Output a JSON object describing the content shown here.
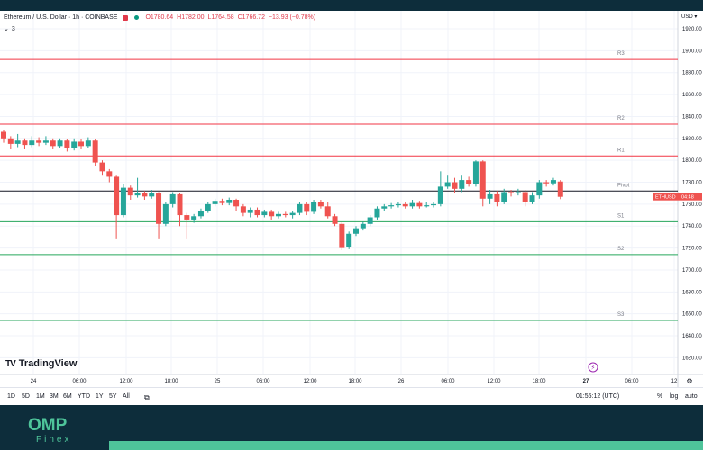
{
  "header": {
    "symbol": "Ethereum / U.S. Dollar · 1h · COINBASE",
    "open": "O1780.64",
    "high": "H1782.00",
    "low": "L1764.58",
    "close": "C1766.72",
    "change": "−13.93 (−0.78%)",
    "indicator_count": "3"
  },
  "currency": "USD",
  "price_axis": [
    "1920.00",
    "1900.00",
    "1880.00",
    "1860.00",
    "1840.00",
    "1820.00",
    "1800.00",
    "1780.00",
    "1760.00",
    "1740.00",
    "1720.00",
    "1700.00",
    "1680.00",
    "1660.00",
    "1640.00",
    "1620.00"
  ],
  "time_axis": [
    "24",
    "06:00",
    "12:00",
    "18:00",
    "25",
    "06:00",
    "12:00",
    "18:00",
    "26",
    "06:00",
    "12:00",
    "18:00",
    "27",
    "06:00",
    "12"
  ],
  "symbol_tag": "ETHUSD",
  "countdown": "04:48",
  "pivot_levels": [
    {
      "label": "R3",
      "price": 1892,
      "color": "#f23645"
    },
    {
      "label": "R2",
      "price": 1833,
      "color": "#f23645"
    },
    {
      "label": "R1",
      "price": 1804,
      "color": "#f23645"
    },
    {
      "label": "Pivot",
      "price": 1772,
      "color": "#131722"
    },
    {
      "label": "S1",
      "price": 1744,
      "color": "#26a65b"
    },
    {
      "label": "S2",
      "price": 1714,
      "color": "#26a65b"
    },
    {
      "label": "S3",
      "price": 1654,
      "color": "#26a65b"
    }
  ],
  "chart_data": {
    "type": "candlestick",
    "candles": [
      {
        "o": 1826,
        "c": 1820,
        "h": 1828,
        "l": 1816
      },
      {
        "o": 1820,
        "c": 1815,
        "h": 1822,
        "l": 1810
      },
      {
        "o": 1815,
        "c": 1818,
        "h": 1824,
        "l": 1812
      },
      {
        "o": 1818,
        "c": 1814,
        "h": 1820,
        "l": 1810
      },
      {
        "o": 1814,
        "c": 1818,
        "h": 1822,
        "l": 1812
      },
      {
        "o": 1818,
        "c": 1816,
        "h": 1821,
        "l": 1813
      },
      {
        "o": 1816,
        "c": 1818,
        "h": 1822,
        "l": 1814
      },
      {
        "o": 1818,
        "c": 1813,
        "h": 1820,
        "l": 1810
      },
      {
        "o": 1813,
        "c": 1818,
        "h": 1820,
        "l": 1811
      },
      {
        "o": 1818,
        "c": 1811,
        "h": 1819,
        "l": 1808
      },
      {
        "o": 1811,
        "c": 1817,
        "h": 1820,
        "l": 1809
      },
      {
        "o": 1817,
        "c": 1813,
        "h": 1819,
        "l": 1810
      },
      {
        "o": 1813,
        "c": 1818,
        "h": 1821,
        "l": 1811
      },
      {
        "o": 1818,
        "c": 1798,
        "h": 1819,
        "l": 1795
      },
      {
        "o": 1798,
        "c": 1790,
        "h": 1800,
        "l": 1786
      },
      {
        "o": 1790,
        "c": 1785,
        "h": 1792,
        "l": 1780
      },
      {
        "o": 1785,
        "c": 1750,
        "h": 1786,
        "l": 1728
      },
      {
        "o": 1750,
        "c": 1775,
        "h": 1778,
        "l": 1748
      },
      {
        "o": 1775,
        "c": 1768,
        "h": 1777,
        "l": 1764
      },
      {
        "o": 1768,
        "c": 1770,
        "h": 1784,
        "l": 1766
      },
      {
        "o": 1770,
        "c": 1767,
        "h": 1772,
        "l": 1764
      },
      {
        "o": 1767,
        "c": 1770,
        "h": 1773,
        "l": 1765
      },
      {
        "o": 1770,
        "c": 1742,
        "h": 1771,
        "l": 1728
      },
      {
        "o": 1742,
        "c": 1760,
        "h": 1762,
        "l": 1740
      },
      {
        "o": 1760,
        "c": 1769,
        "h": 1771,
        "l": 1757
      },
      {
        "o": 1769,
        "c": 1750,
        "h": 1770,
        "l": 1740
      },
      {
        "o": 1750,
        "c": 1746,
        "h": 1752,
        "l": 1728
      },
      {
        "o": 1746,
        "c": 1749,
        "h": 1751,
        "l": 1743
      },
      {
        "o": 1749,
        "c": 1754,
        "h": 1756,
        "l": 1747
      },
      {
        "o": 1754,
        "c": 1760,
        "h": 1762,
        "l": 1752
      },
      {
        "o": 1760,
        "c": 1763,
        "h": 1765,
        "l": 1758
      },
      {
        "o": 1763,
        "c": 1761,
        "h": 1765,
        "l": 1759
      },
      {
        "o": 1761,
        "c": 1764,
        "h": 1766,
        "l": 1759
      },
      {
        "o": 1764,
        "c": 1758,
        "h": 1765,
        "l": 1754
      },
      {
        "o": 1758,
        "c": 1752,
        "h": 1760,
        "l": 1749
      },
      {
        "o": 1752,
        "c": 1755,
        "h": 1757,
        "l": 1748
      },
      {
        "o": 1755,
        "c": 1750,
        "h": 1757,
        "l": 1748
      },
      {
        "o": 1750,
        "c": 1753,
        "h": 1755,
        "l": 1748
      },
      {
        "o": 1753,
        "c": 1749,
        "h": 1755,
        "l": 1746
      },
      {
        "o": 1749,
        "c": 1751,
        "h": 1753,
        "l": 1747
      },
      {
        "o": 1751,
        "c": 1750,
        "h": 1753,
        "l": 1748
      },
      {
        "o": 1750,
        "c": 1752,
        "h": 1754,
        "l": 1747
      },
      {
        "o": 1752,
        "c": 1760,
        "h": 1762,
        "l": 1750
      },
      {
        "o": 1760,
        "c": 1753,
        "h": 1762,
        "l": 1750
      },
      {
        "o": 1753,
        "c": 1762,
        "h": 1764,
        "l": 1751
      },
      {
        "o": 1762,
        "c": 1758,
        "h": 1764,
        "l": 1756
      },
      {
        "o": 1758,
        "c": 1749,
        "h": 1762,
        "l": 1747
      },
      {
        "o": 1749,
        "c": 1742,
        "h": 1751,
        "l": 1740
      },
      {
        "o": 1742,
        "c": 1720,
        "h": 1744,
        "l": 1718
      },
      {
        "o": 1721,
        "c": 1733,
        "h": 1735,
        "l": 1719
      },
      {
        "o": 1733,
        "c": 1738,
        "h": 1740,
        "l": 1731
      },
      {
        "o": 1738,
        "c": 1742,
        "h": 1744,
        "l": 1736
      },
      {
        "o": 1742,
        "c": 1748,
        "h": 1750,
        "l": 1740
      },
      {
        "o": 1748,
        "c": 1756,
        "h": 1758,
        "l": 1746
      },
      {
        "o": 1756,
        "c": 1758,
        "h": 1760,
        "l": 1754
      },
      {
        "o": 1758,
        "c": 1759,
        "h": 1761,
        "l": 1756
      },
      {
        "o": 1759,
        "c": 1760,
        "h": 1762,
        "l": 1757
      },
      {
        "o": 1760,
        "c": 1758,
        "h": 1762,
        "l": 1756
      },
      {
        "o": 1758,
        "c": 1761,
        "h": 1764,
        "l": 1756
      },
      {
        "o": 1761,
        "c": 1758,
        "h": 1763,
        "l": 1756
      },
      {
        "o": 1758,
        "c": 1759,
        "h": 1762,
        "l": 1757
      },
      {
        "o": 1759,
        "c": 1760,
        "h": 1762,
        "l": 1757
      },
      {
        "o": 1760,
        "c": 1776,
        "h": 1790,
        "l": 1758
      },
      {
        "o": 1776,
        "c": 1780,
        "h": 1786,
        "l": 1774
      },
      {
        "o": 1780,
        "c": 1774,
        "h": 1784,
        "l": 1770
      },
      {
        "o": 1774,
        "c": 1782,
        "h": 1786,
        "l": 1771
      },
      {
        "o": 1782,
        "c": 1778,
        "h": 1785,
        "l": 1776
      },
      {
        "o": 1778,
        "c": 1799,
        "h": 1800,
        "l": 1776
      },
      {
        "o": 1799,
        "c": 1765,
        "h": 1800,
        "l": 1758
      },
      {
        "o": 1765,
        "c": 1769,
        "h": 1773,
        "l": 1760
      },
      {
        "o": 1769,
        "c": 1762,
        "h": 1772,
        "l": 1758
      },
      {
        "o": 1762,
        "c": 1771,
        "h": 1774,
        "l": 1760
      },
      {
        "o": 1771,
        "c": 1770,
        "h": 1773,
        "l": 1767
      },
      {
        "o": 1770,
        "c": 1771,
        "h": 1774,
        "l": 1768
      },
      {
        "o": 1771,
        "c": 1762,
        "h": 1773,
        "l": 1758
      },
      {
        "o": 1762,
        "c": 1768,
        "h": 1771,
        "l": 1760
      },
      {
        "o": 1768,
        "c": 1780,
        "h": 1782,
        "l": 1765
      },
      {
        "o": 1780,
        "c": 1779,
        "h": 1782,
        "l": 1776
      },
      {
        "o": 1779,
        "c": 1782,
        "h": 1784,
        "l": 1777
      },
      {
        "o": 1780.64,
        "c": 1766.72,
        "h": 1782,
        "l": 1764.58
      }
    ]
  },
  "logo_text": "TradingView",
  "toolbar": {
    "timeframes": [
      "1D",
      "5D",
      "1M",
      "3M",
      "6M",
      "YTD",
      "1Y",
      "5Y",
      "All"
    ],
    "clock": "01:55:12 (UTC)",
    "percent": "%",
    "log": "log",
    "auto": "auto"
  },
  "brand": {
    "name": "OMP",
    "sub": "Finex"
  },
  "colors": {
    "up": "#26a69a",
    "down": "#ef5350",
    "brand": "#4ec49a",
    "navy": "#0d2d3b"
  }
}
